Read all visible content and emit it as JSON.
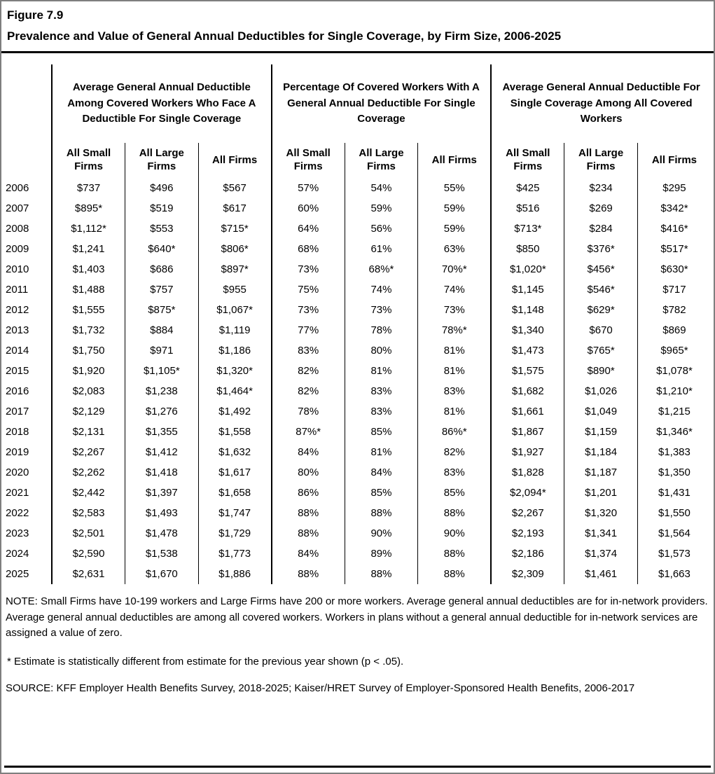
{
  "figure": {
    "label": "Figure 7.9",
    "title": "Prevalence and Value of General Annual Deductibles for Single Coverage, by Firm Size, 2006-2025"
  },
  "notes": {
    "note": "NOTE: Small Firms have 10-199 workers and Large Firms have 200 or more workers. Average general annual deductibles are for in-network providers. Average general annual deductibles are among all covered workers. Workers in plans without a general annual deductible for in-network services are assigned a value of zero.",
    "asterisk": "* Estimate is statistically different from estimate for the previous year shown (p < .05).",
    "source": "SOURCE: KFF Employer Health Benefits Survey, 2018-2025; Kaiser/HRET Survey of Employer-Sponsored Health Benefits, 2006-2017"
  },
  "chart_data": {
    "type": "table",
    "title": "Prevalence and Value of General Annual Deductibles for Single Coverage, by Firm Size, 2006-2025",
    "figure_label": "Figure 7.9",
    "column_groups": [
      {
        "title": "Average General Annual Deductible Among Covered Workers Who Face A Deductible For Single Coverage",
        "columns": [
          "All Small Firms",
          "All Large Firms",
          "All Firms"
        ]
      },
      {
        "title": "Percentage Of Covered Workers With A General Annual Deductible For Single Coverage",
        "columns": [
          "All Small Firms",
          "All Large Firms",
          "All Firms"
        ]
      },
      {
        "title": "Average General Annual Deductible For Single Coverage Among All Covered Workers",
        "columns": [
          "All Small Firms",
          "All Large Firms",
          "All Firms"
        ]
      }
    ],
    "rows": [
      {
        "year": "2006",
        "values": [
          "$737",
          "$496",
          "$567",
          "57%",
          "54%",
          "55%",
          "$425",
          "$234",
          "$295"
        ]
      },
      {
        "year": "2007",
        "values": [
          "$895*",
          "$519",
          "$617",
          "60%",
          "59%",
          "59%",
          "$516",
          "$269",
          "$342*"
        ]
      },
      {
        "year": "2008",
        "values": [
          "$1,112*",
          "$553",
          "$715*",
          "64%",
          "56%",
          "59%",
          "$713*",
          "$284",
          "$416*"
        ]
      },
      {
        "year": "2009",
        "values": [
          "$1,241",
          "$640*",
          "$806*",
          "68%",
          "61%",
          "63%",
          "$850",
          "$376*",
          "$517*"
        ]
      },
      {
        "year": "2010",
        "values": [
          "$1,403",
          "$686",
          "$897*",
          "73%",
          "68%*",
          "70%*",
          "$1,020*",
          "$456*",
          "$630*"
        ]
      },
      {
        "year": "2011",
        "values": [
          "$1,488",
          "$757",
          "$955",
          "75%",
          "74%",
          "74%",
          "$1,145",
          "$546*",
          "$717"
        ]
      },
      {
        "year": "2012",
        "values": [
          "$1,555",
          "$875*",
          "$1,067*",
          "73%",
          "73%",
          "73%",
          "$1,148",
          "$629*",
          "$782"
        ]
      },
      {
        "year": "2013",
        "values": [
          "$1,732",
          "$884",
          "$1,119",
          "77%",
          "78%",
          "78%*",
          "$1,340",
          "$670",
          "$869"
        ]
      },
      {
        "year": "2014",
        "values": [
          "$1,750",
          "$971",
          "$1,186",
          "83%",
          "80%",
          "81%",
          "$1,473",
          "$765*",
          "$965*"
        ]
      },
      {
        "year": "2015",
        "values": [
          "$1,920",
          "$1,105*",
          "$1,320*",
          "82%",
          "81%",
          "81%",
          "$1,575",
          "$890*",
          "$1,078*"
        ]
      },
      {
        "year": "2016",
        "values": [
          "$2,083",
          "$1,238",
          "$1,464*",
          "82%",
          "83%",
          "83%",
          "$1,682",
          "$1,026",
          "$1,210*"
        ]
      },
      {
        "year": "2017",
        "values": [
          "$2,129",
          "$1,276",
          "$1,492",
          "78%",
          "83%",
          "81%",
          "$1,661",
          "$1,049",
          "$1,215"
        ]
      },
      {
        "year": "2018",
        "values": [
          "$2,131",
          "$1,355",
          "$1,558",
          "87%*",
          "85%",
          "86%*",
          "$1,867",
          "$1,159",
          "$1,346*"
        ]
      },
      {
        "year": "2019",
        "values": [
          "$2,267",
          "$1,412",
          "$1,632",
          "84%",
          "81%",
          "82%",
          "$1,927",
          "$1,184",
          "$1,383"
        ]
      },
      {
        "year": "2020",
        "values": [
          "$2,262",
          "$1,418",
          "$1,617",
          "80%",
          "84%",
          "83%",
          "$1,828",
          "$1,187",
          "$1,350"
        ]
      },
      {
        "year": "2021",
        "values": [
          "$2,442",
          "$1,397",
          "$1,658",
          "86%",
          "85%",
          "85%",
          "$2,094*",
          "$1,201",
          "$1,431"
        ]
      },
      {
        "year": "2022",
        "values": [
          "$2,583",
          "$1,493",
          "$1,747",
          "88%",
          "88%",
          "88%",
          "$2,267",
          "$1,320",
          "$1,550"
        ]
      },
      {
        "year": "2023",
        "values": [
          "$2,501",
          "$1,478",
          "$1,729",
          "88%",
          "90%",
          "90%",
          "$2,193",
          "$1,341",
          "$1,564"
        ]
      },
      {
        "year": "2024",
        "values": [
          "$2,590",
          "$1,538",
          "$1,773",
          "84%",
          "89%",
          "88%",
          "$2,186",
          "$1,374",
          "$1,573"
        ]
      },
      {
        "year": "2025",
        "values": [
          "$2,631",
          "$1,670",
          "$1,886",
          "88%",
          "88%",
          "88%",
          "$2,309",
          "$1,461",
          "$1,663"
        ]
      }
    ]
  }
}
